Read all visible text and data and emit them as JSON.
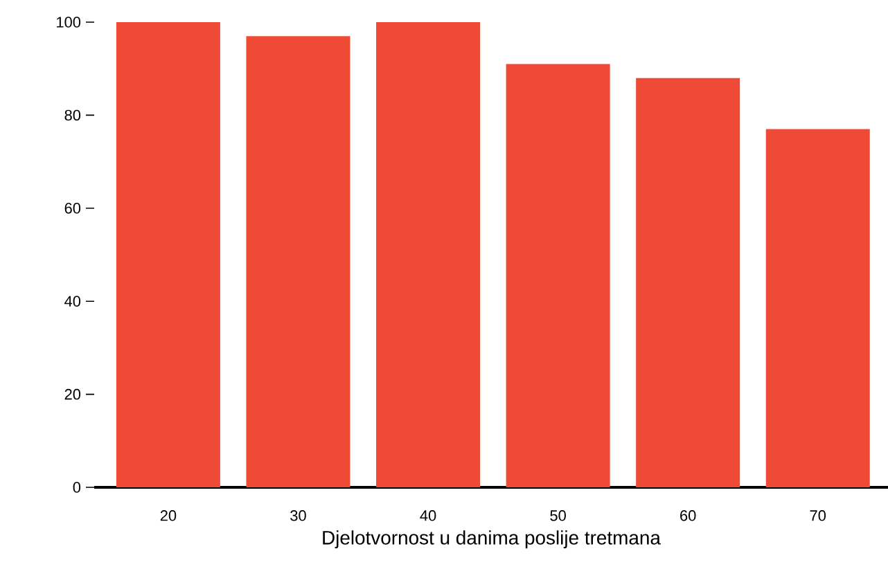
{
  "chart_data": {
    "type": "bar",
    "xlabel": "Djelotvornost u danima poslije tretmana",
    "categories": [
      "20",
      "30",
      "40",
      "50",
      "60",
      "70"
    ],
    "values": [
      100,
      97,
      100,
      91,
      88,
      77
    ],
    "color": "#ee4a35",
    "ylim": [
      0,
      100
    ],
    "yticks": [
      0,
      20,
      40,
      60,
      80,
      100
    ]
  }
}
